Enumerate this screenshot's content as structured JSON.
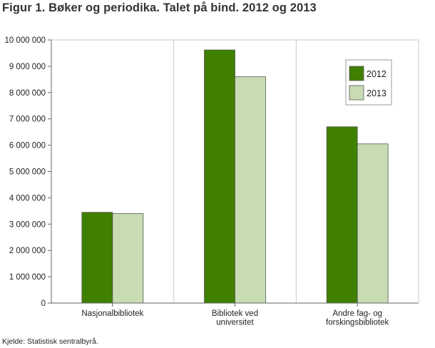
{
  "title": "Figur 1. Bøker og periodika. Talet på bind. 2012 og 2013",
  "source": "Kjelde: Statistisk sentralbyrå.",
  "colors": {
    "2012": "#3f8000",
    "2013": "#c7dcb3",
    "axis": "#666666",
    "grid": "#c8c8c8"
  },
  "chart_data": {
    "type": "bar",
    "title": "Figur 1. Bøker og periodika. Talet på bind. 2012 og 2013",
    "xlabel": "",
    "ylabel": "",
    "ylim": [
      0,
      10000000
    ],
    "yticks": [
      0,
      1000000,
      2000000,
      3000000,
      4000000,
      5000000,
      6000000,
      7000000,
      8000000,
      9000000,
      10000000
    ],
    "ytick_labels": [
      "0",
      "1 000 000",
      "2 000 000",
      "3 000 000",
      "4 000 000",
      "5 000 000",
      "6 000 000",
      "7 000 000",
      "8 000 000",
      "9 000 000",
      "10 000 000"
    ],
    "categories": [
      [
        "Nasjonalbibliotek"
      ],
      [
        "Bibliotek ved",
        "universitet"
      ],
      [
        "Andre fag- og",
        "forskingsbibliotek"
      ]
    ],
    "series": [
      {
        "name": "2012",
        "values": [
          3450000,
          9620000,
          6700000
        ]
      },
      {
        "name": "2013",
        "values": [
          3400000,
          8600000,
          6050000
        ]
      }
    ],
    "grid": "vertical category separators",
    "legend": "top-right"
  }
}
